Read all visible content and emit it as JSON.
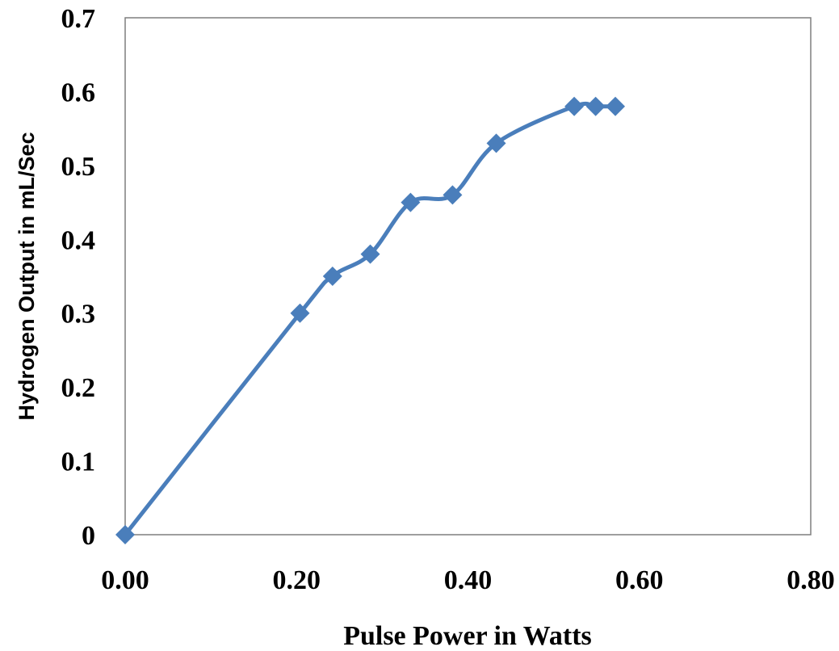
{
  "chart_data": {
    "type": "line",
    "xlabel": "Pulse Power in Watts",
    "ylabel": "Hydrogen Output in mL/Sec",
    "xlim": [
      0,
      0.8
    ],
    "ylim": [
      0,
      0.7
    ],
    "x_ticks": [
      "0.00",
      "0.20",
      "0.40",
      "0.60",
      "0.80"
    ],
    "y_ticks": [
      "0",
      "0.1",
      "0.2",
      "0.3",
      "0.4",
      "0.5",
      "0.6",
      "0.7"
    ],
    "grid": false,
    "marker": "diamond",
    "smooth": true,
    "series": [
      {
        "color": "#4a7ebb",
        "x": [
          0.0,
          0.204,
          0.242,
          0.286,
          0.333,
          0.382,
          0.433,
          0.524,
          0.549,
          0.572
        ],
        "y": [
          0.0,
          0.3,
          0.35,
          0.38,
          0.45,
          0.46,
          0.53,
          0.58,
          0.58,
          0.58
        ]
      }
    ]
  }
}
